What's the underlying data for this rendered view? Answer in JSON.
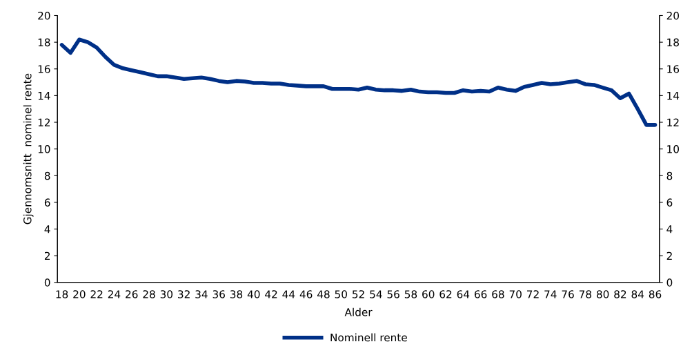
{
  "chart_data": {
    "type": "line",
    "xlabel": "Alder",
    "ylabel": "Gjennomsnitt  nominel rente",
    "categories": [
      "18",
      null,
      "20",
      null,
      "22",
      null,
      "24",
      null,
      "26",
      null,
      "28",
      null,
      "30",
      null,
      "32",
      null,
      "34",
      null,
      "36",
      null,
      "38",
      null,
      "40",
      null,
      "42",
      null,
      "44",
      null,
      "46",
      null,
      "48",
      null,
      "50",
      null,
      "52",
      null,
      "54",
      null,
      "56",
      null,
      "58",
      null,
      "60",
      null,
      "62",
      null,
      "64",
      null,
      "66",
      null,
      "68",
      null,
      "70",
      null,
      "72",
      null,
      "74",
      null,
      "76",
      null,
      "78",
      null,
      "80",
      null,
      "82",
      null,
      "84",
      null,
      "86"
    ],
    "series": [
      {
        "name": "Nominell rente",
        "color": "#003087",
        "values": [
          17.8,
          17.2,
          18.2,
          18.0,
          17.6,
          16.9,
          16.3,
          16.05,
          15.9,
          15.75,
          15.6,
          15.45,
          15.45,
          15.35,
          15.25,
          15.3,
          15.35,
          15.25,
          15.1,
          15.0,
          15.1,
          15.05,
          14.95,
          14.95,
          14.9,
          14.9,
          14.8,
          14.75,
          14.7,
          14.7,
          14.7,
          14.5,
          14.5,
          14.5,
          14.45,
          14.6,
          14.45,
          14.4,
          14.4,
          14.35,
          14.45,
          14.3,
          14.25,
          14.25,
          14.2,
          14.2,
          14.4,
          14.3,
          14.35,
          14.3,
          14.6,
          14.45,
          14.35,
          14.65,
          14.8,
          14.95,
          14.85,
          14.9,
          15.0,
          15.1,
          14.85,
          14.8,
          14.6,
          14.4,
          13.8,
          14.15,
          13.0,
          11.8,
          11.8
        ]
      }
    ],
    "ylim": [
      0,
      20
    ],
    "yticks": [
      0,
      2,
      4,
      6,
      8,
      10,
      12,
      14,
      16,
      18,
      20
    ],
    "y2lim": [
      0,
      20
    ],
    "y2ticks": [
      0,
      2,
      4,
      6,
      8,
      10,
      12,
      14,
      16,
      18,
      20
    ],
    "legend": "bottom",
    "grid": false,
    "marker": "none",
    "line_style": "solid"
  }
}
